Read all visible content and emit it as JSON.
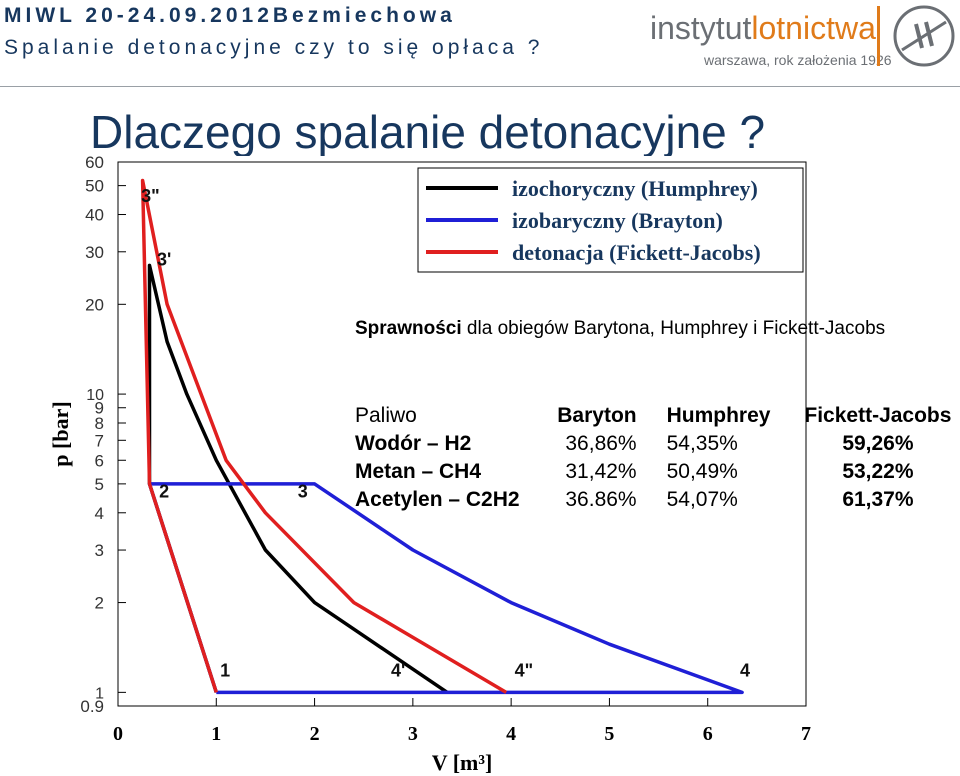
{
  "header": {
    "line1": "MIWL 20-24.09.2012Bezmiechowa",
    "line2": "Spalanie detonacyjne czy to się opłaca ?"
  },
  "logo": {
    "name_part1": "instytut",
    "name_part2": "lotnictwa",
    "subtitle": "warszawa, rok założenia 1926",
    "accent_color": "#e07b1a",
    "text_color": "#6b6f74"
  },
  "title": "Dlaczego spalanie detonacyjne ?",
  "note": {
    "bold": "Sprawności",
    "rest": " dla obiegów Barytona, Humphrey i Fickett-Jacobs"
  },
  "table": {
    "headers": [
      "Paliwo",
      "Baryton",
      "Humphrey",
      "Fickett-Jacobs"
    ],
    "rows": [
      [
        "Wodór – H2",
        "36,86%",
        "54,35%",
        "59,26%"
      ],
      [
        "Metan – CH4",
        "31,42%",
        "50,49%",
        "53,22%"
      ],
      [
        "Acetylen – C2H2",
        "36.86%",
        "54,07%",
        "61,37%"
      ]
    ]
  },
  "chart_data": {
    "type": "line",
    "xlabel": "V [m³]",
    "ylabel": "p [bar]",
    "xlim": [
      0,
      7
    ],
    "ylim": [
      0.9,
      60
    ],
    "yscale": "log",
    "x_ticks": [
      "0",
      "1",
      "2",
      "3",
      "4",
      "5",
      "6",
      "7"
    ],
    "y_ticks": [
      {
        "v": 0.9,
        "label": "0.9"
      },
      {
        "v": 1,
        "label": "1"
      },
      {
        "v": 2,
        "label": "2"
      },
      {
        "v": 3,
        "label": "3"
      },
      {
        "v": 4,
        "label": "4"
      },
      {
        "v": 5,
        "label": "5"
      },
      {
        "v": 6,
        "label": "6"
      },
      {
        "v": 7,
        "label": "7"
      },
      {
        "v": 8,
        "label": "8"
      },
      {
        "v": 9,
        "label": "9"
      },
      {
        "v": 10,
        "label": "10"
      },
      {
        "v": 20,
        "label": "20"
      },
      {
        "v": 30,
        "label": "30"
      },
      {
        "v": 40,
        "label": "40"
      },
      {
        "v": 50,
        "label": "50"
      },
      {
        "v": 60,
        "label": "60"
      }
    ],
    "series": [
      {
        "name": "izochoryczny (Humphrey)",
        "color": "#000000",
        "points": [
          [
            1,
            1
          ],
          [
            0.32,
            5
          ],
          [
            0.32,
            27
          ],
          [
            0.5,
            15
          ],
          [
            0.7,
            10
          ],
          [
            1,
            6
          ],
          [
            1.5,
            3
          ],
          [
            2,
            2
          ],
          [
            3.35,
            1
          ]
        ]
      },
      {
        "name": "izobaryczny (Brayton)",
        "color": "#1f1fd6",
        "points": [
          [
            1,
            1
          ],
          [
            0.32,
            5
          ],
          [
            2,
            5
          ],
          [
            3,
            3
          ],
          [
            4,
            2
          ],
          [
            5,
            1.45
          ],
          [
            6.35,
            1
          ],
          [
            1,
            1
          ]
        ]
      },
      {
        "name": "detonacja (Fickett-Jacobs)",
        "color": "#e01f1f",
        "points": [
          [
            1,
            1
          ],
          [
            0.32,
            5
          ],
          [
            0.25,
            52
          ],
          [
            0.5,
            20
          ],
          [
            1.1,
            6
          ],
          [
            1.5,
            4
          ],
          [
            2.4,
            2
          ],
          [
            3.95,
            1
          ]
        ]
      }
    ],
    "point_labels": [
      {
        "label": "3\"",
        "x": 0.33,
        "y": 44
      },
      {
        "label": "3'",
        "x": 0.47,
        "y": 27
      },
      {
        "label": "2",
        "x": 0.47,
        "y": 4.5
      },
      {
        "label": "3",
        "x": 1.88,
        "y": 4.5
      },
      {
        "label": "1",
        "x": 1.09,
        "y": 1.13
      },
      {
        "label": "4'",
        "x": 2.85,
        "y": 1.13
      },
      {
        "label": "4\"",
        "x": 4.13,
        "y": 1.13
      },
      {
        "label": "4",
        "x": 6.38,
        "y": 1.13
      }
    ]
  }
}
